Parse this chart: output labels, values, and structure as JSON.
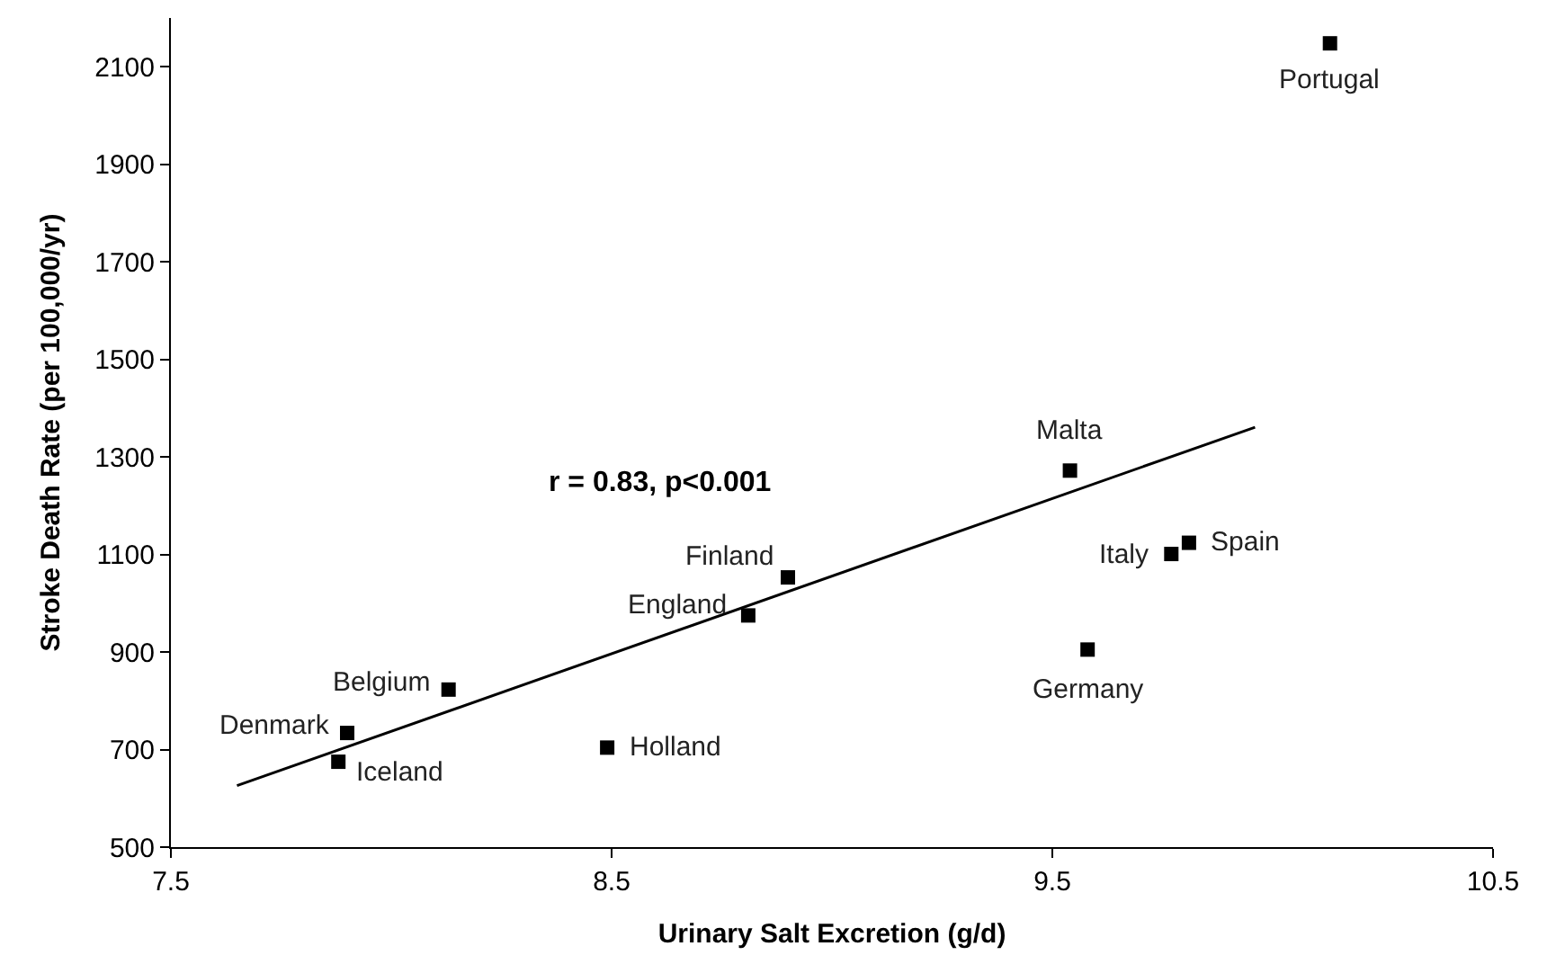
{
  "chart_data": {
    "type": "scatter",
    "xlabel": "Urinary Salt Excretion (g/d)",
    "ylabel": "Stroke Death Rate (per 100,000/yr)",
    "xlim": [
      7.5,
      10.5
    ],
    "xticks": [
      7.5,
      8.5,
      9.5,
      10.5
    ],
    "ylim": [
      500,
      2200
    ],
    "yticks": [
      500,
      700,
      900,
      1100,
      1300,
      1500,
      1700,
      1900,
      2100
    ],
    "marker": "square",
    "series": [
      {
        "color": "#000000",
        "x": [
          10.13,
          9.54,
          9.81,
          9.77,
          9.58,
          8.9,
          8.81,
          8.49,
          8.13,
          7.9,
          7.88
        ],
        "values": [
          2148,
          1272,
          1124,
          1101,
          905,
          1053,
          975,
          704,
          823,
          734,
          675
        ]
      },
      {
        "type": "line",
        "color": "#000000",
        "marker": "none",
        "x": [
          7.65,
          9.96
        ],
        "values": [
          626,
          1361
        ]
      }
    ],
    "annotations": [
      {
        "text": "Portugal",
        "x": 10.13,
        "y": 2148
      },
      {
        "text": "Malta",
        "x": 9.54,
        "y": 1272
      },
      {
        "text": "Spain",
        "x": 9.81,
        "y": 1124
      },
      {
        "text": "Italy",
        "x": 9.77,
        "y": 1101
      },
      {
        "text": "Germany",
        "x": 9.58,
        "y": 905
      },
      {
        "text": "Finland",
        "x": 8.9,
        "y": 1053
      },
      {
        "text": "England",
        "x": 8.81,
        "y": 975
      },
      {
        "text": "Holland",
        "x": 8.49,
        "y": 704
      },
      {
        "text": "Belgium",
        "x": 8.13,
        "y": 823
      },
      {
        "text": "Denmark",
        "x": 7.9,
        "y": 734
      },
      {
        "text": "Iceland",
        "x": 7.88,
        "y": 675
      },
      "r = 0.83, p<0.001"
    ]
  }
}
